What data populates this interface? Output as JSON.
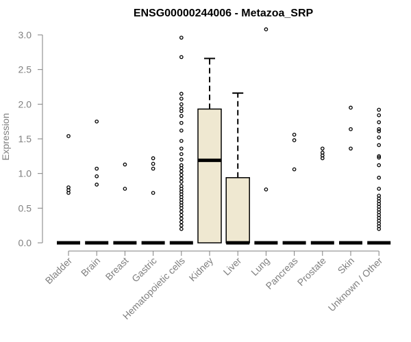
{
  "chart_data": {
    "type": "box",
    "title": "ENSG00000244006 - Metazoa_SRP",
    "xlabel": "",
    "ylabel": "Expression",
    "ylim": [
      0,
      3.0
    ],
    "yticks": [
      "0.0",
      "0.5",
      "1.0",
      "1.5",
      "2.0",
      "2.5",
      "3.0"
    ],
    "box_fill": "#efe8d1",
    "categories": [
      "Bladder",
      "Brain",
      "Breast",
      "Gastric",
      "Hematopoietic cells",
      "Kidney",
      "Liver",
      "Lung",
      "Pancreas",
      "Prostate",
      "Skin",
      "Unknown / Other"
    ],
    "boxes": [
      {
        "category": "Bladder",
        "q1": 0,
        "median": 0,
        "q3": 0,
        "whisker_low": 0,
        "whisker_high": 0,
        "outliers": [
          1.54,
          0.8,
          0.76,
          0.72
        ]
      },
      {
        "category": "Brain",
        "q1": 0,
        "median": 0,
        "q3": 0,
        "whisker_low": 0,
        "whisker_high": 0,
        "outliers": [
          1.75,
          1.07,
          0.96,
          0.84
        ]
      },
      {
        "category": "Breast",
        "q1": 0,
        "median": 0,
        "q3": 0,
        "whisker_low": 0,
        "whisker_high": 0,
        "outliers": [
          1.13,
          0.78
        ]
      },
      {
        "category": "Gastric",
        "q1": 0,
        "median": 0,
        "q3": 0,
        "whisker_low": 0,
        "whisker_high": 0,
        "outliers": [
          1.22,
          1.14,
          1.07,
          0.72
        ]
      },
      {
        "category": "Hematopoietic cells",
        "q1": 0,
        "median": 0,
        "q3": 0,
        "whisker_low": 0,
        "whisker_high": 0,
        "outliers": [
          2.96,
          2.68,
          2.15,
          2.08,
          2.0,
          1.94,
          1.9,
          1.83,
          1.73,
          1.62,
          1.47,
          1.36,
          1.28,
          1.2,
          1.12,
          1.08,
          1.03,
          0.98,
          0.93,
          0.88,
          0.82,
          0.78,
          0.74,
          0.7,
          0.66,
          0.62,
          0.58,
          0.54,
          0.5,
          0.45,
          0.4,
          0.35,
          0.3,
          0.25,
          0.2
        ]
      },
      {
        "category": "Kidney",
        "q1": 0,
        "median": 1.19,
        "q3": 1.93,
        "whisker_low": 0,
        "whisker_high": 2.66,
        "outliers": []
      },
      {
        "category": "Liver",
        "q1": 0,
        "median": 0,
        "q3": 0.94,
        "whisker_low": 0,
        "whisker_high": 2.16,
        "outliers": []
      },
      {
        "category": "Lung",
        "q1": 0,
        "median": 0,
        "q3": 0,
        "whisker_low": 0,
        "whisker_high": 0,
        "outliers": [
          3.08,
          0.77
        ]
      },
      {
        "category": "Pancreas",
        "q1": 0,
        "median": 0,
        "q3": 0,
        "whisker_low": 0,
        "whisker_high": 0,
        "outliers": [
          1.56,
          1.48,
          1.06
        ]
      },
      {
        "category": "Prostate",
        "q1": 0,
        "median": 0,
        "q3": 0,
        "whisker_low": 0,
        "whisker_high": 0,
        "outliers": [
          1.36,
          1.3,
          1.26,
          1.22
        ]
      },
      {
        "category": "Skin",
        "q1": 0,
        "median": 0,
        "q3": 0,
        "whisker_low": 0,
        "whisker_high": 0,
        "outliers": [
          1.95,
          1.64,
          1.36
        ]
      },
      {
        "category": "Unknown / Other",
        "q1": 0,
        "median": 0,
        "q3": 0,
        "whisker_low": 0,
        "whisker_high": 0,
        "outliers": [
          1.92,
          1.84,
          1.74,
          1.64,
          1.61,
          1.52,
          1.41,
          1.25,
          1.23,
          1.12,
          0.94,
          0.78,
          0.68,
          0.64,
          0.6,
          0.56,
          0.52,
          0.48,
          0.44,
          0.4,
          0.36,
          0.32,
          0.28,
          0.24,
          0.2
        ]
      }
    ]
  }
}
